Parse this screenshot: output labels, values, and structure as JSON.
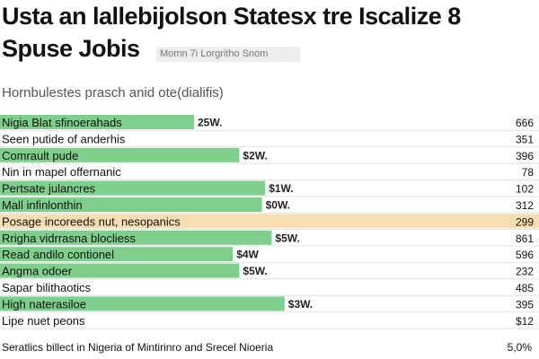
{
  "header": {
    "title_line_1": "Usta an lallebijolson Statesx tre Iscalize 8",
    "title_line_2": "Spuse Jobis",
    "source_tag": "Momn 7i Lorgritho Snom",
    "subtitle": "Hornbulestes prasch anid ote(dialifis)"
  },
  "footer": {
    "note": "Seratlics billect in Nigeria of Mintirinro and Srecel Nioeria",
    "value": "5,0%"
  },
  "colors": {
    "bar_green": "#7fcf8c",
    "bar_highlight": "#f7ddb0",
    "divider": "#d9d9d9"
  },
  "chart_data": {
    "type": "bar",
    "orientation": "horizontal",
    "grid": false,
    "legend": "none",
    "xlim": [
      0,
      100
    ],
    "categories": [
      "Nigia Blat sfinoerahads",
      "Seen putide of anderhis",
      "Comrault pude",
      "Nin in mapel offernanic",
      "Pertsate julancres",
      "Mall infinlonthin",
      "Posage incoreeds nut, nesopanics",
      "Rrigha vidrrasna blocliess",
      "Read andilo contionel",
      "Angma odoer",
      "Sapar bilithaotics",
      "High naterasiloe",
      "Lipe nuet peons"
    ],
    "values": [
      60,
      0,
      74,
      0,
      82,
      81,
      0,
      84,
      72,
      74,
      0,
      88,
      0
    ],
    "bar_labels": [
      "25W.",
      "",
      "$2W.",
      "",
      "$1W.",
      "$0W.",
      "",
      "$5W.",
      "$4W",
      "$5W.",
      "",
      "$3W.",
      ""
    ],
    "right_values": [
      "666",
      "351",
      "396",
      "78",
      "102",
      "312",
      "299",
      "861",
      "596",
      "232",
      "485",
      "395",
      "$12"
    ],
    "highlight_index": 6
  }
}
